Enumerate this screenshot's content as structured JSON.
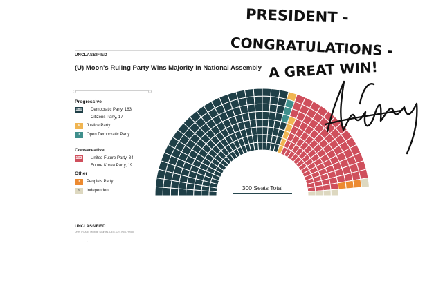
{
  "header": {
    "classification": "UNCLASSIFIED",
    "title": "(U) Moon's Ruling Party Wins Majority in National Assembly"
  },
  "footer": {
    "classification": "UNCLASSIFIED",
    "source": "DPH TRDDE: Multiple Sources, DEG, CRi, Koh-Freidd",
    "mark": "•"
  },
  "legend": {
    "progressive": {
      "heading": "Progressive",
      "total": "180",
      "items": [
        "Democratic Party, 163",
        "Citizens Party, 17"
      ],
      "justice_count": "6",
      "justice": "Justice Party",
      "open_count": "3",
      "open": "Open Democratic Party"
    },
    "conservative": {
      "heading": "Conservative",
      "total": "103",
      "items": [
        "United Future Party, 84",
        "Future Korea Party, 19"
      ]
    },
    "other": {
      "heading": "Other",
      "peoples_count": "3",
      "peoples": "People's Party",
      "ind_count": "5",
      "ind": "Independent"
    }
  },
  "handwriting": {
    "line1": "PRESIDENT -",
    "line2": "CONGRATULATIONS -",
    "line3": "A GREAT WIN!"
  },
  "colors": {
    "progressive": "#1f3f47",
    "justice": "#f0b552",
    "open": "#3f8f8c",
    "conservative": "#cf4f5c",
    "peoples": "#ec8a30",
    "independent": "#ddd8c0"
  },
  "chart_data": {
    "type": "parliament",
    "total_label": "300 Seats Total",
    "total_seats": 300,
    "series": [
      {
        "name": "Progressive",
        "value": 180,
        "color": "#1f3f47"
      },
      {
        "name": "Open Democratic Party",
        "value": 3,
        "color": "#3f8f8c"
      },
      {
        "name": "Justice Party",
        "value": 6,
        "color": "#f0b552"
      },
      {
        "name": "Conservative",
        "value": 103,
        "color": "#cf4f5c"
      },
      {
        "name": "People's Party",
        "value": 3,
        "color": "#ec8a30"
      },
      {
        "name": "Independent",
        "value": 5,
        "color": "#ddd8c0"
      }
    ]
  }
}
